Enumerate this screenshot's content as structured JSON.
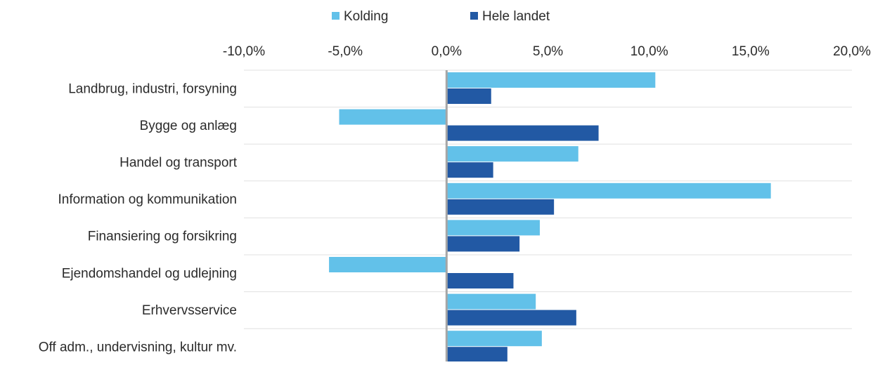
{
  "chart_data": {
    "type": "bar",
    "orientation": "horizontal",
    "categories": [
      "Landbrug, industri, forsyning",
      "Bygge og anlæg",
      "Handel og transport",
      "Information og kommunikation",
      "Finansiering og forsikring",
      "Ejendomshandel og udlejning",
      "Erhvervsservice",
      "Off adm., undervisning, kultur mv."
    ],
    "series": [
      {
        "name": "Kolding",
        "color": "#62c1e9",
        "values": [
          10.3,
          -5.3,
          6.5,
          16.0,
          4.6,
          -5.8,
          4.4,
          4.7
        ]
      },
      {
        "name": "Hele landet",
        "color": "#2259a4",
        "values": [
          2.2,
          7.5,
          2.3,
          5.3,
          3.6,
          3.3,
          6.4,
          3.0
        ]
      }
    ],
    "xlim": [
      -10,
      20
    ],
    "xticks": [
      -10,
      -5,
      0,
      5,
      10,
      15,
      20
    ],
    "xtick_labels": [
      "-10,0%",
      "-5,0%",
      "0,0%",
      "5,0%",
      "10,0%",
      "15,0%",
      "20,0%"
    ],
    "title": "",
    "xlabel": "",
    "ylabel": "",
    "legend_position": "top-center",
    "axis_position": "top",
    "grid": "horizontal separators",
    "zero_line_color": "#a6a6a6",
    "grid_color": "#e0e0e0"
  }
}
